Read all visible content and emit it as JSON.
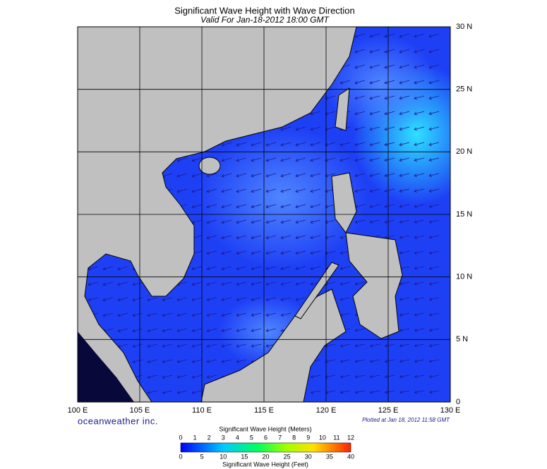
{
  "header": {
    "title": "Significant Wave Height with Wave Direction",
    "subtitle": "Valid For Jan-18-2012 18:00 GMT"
  },
  "map": {
    "lat_labels": [
      "30 N",
      "25 N",
      "20 N",
      "15 N",
      "10 N",
      "5 N",
      "0"
    ],
    "lon_labels": [
      "100 E",
      "105 E",
      "110 E",
      "115 E",
      "120 E",
      "125 E",
      "130 E"
    ]
  },
  "footer": {
    "brand": "oceanweather inc.",
    "plotted": "Plotted at Jan 18, 2012 11:58 GMT"
  },
  "colorbar": {
    "title_meters": "Significant Wave Height (Meters)",
    "meters_ticks": [
      0,
      1,
      2,
      3,
      4,
      5,
      6,
      7,
      8,
      9,
      10,
      11,
      12
    ],
    "title_feet": "Significant Wave Height (Feet)",
    "feet_ticks": [
      0,
      5,
      10,
      15,
      20,
      25,
      30,
      35,
      40
    ]
  }
}
